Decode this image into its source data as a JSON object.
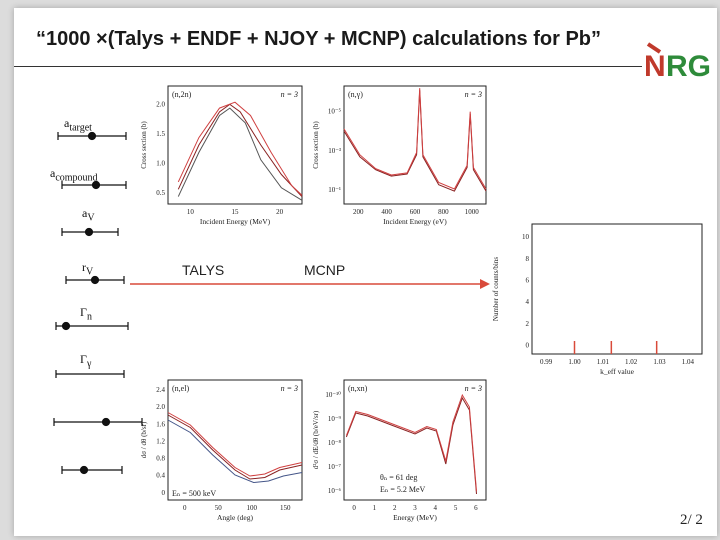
{
  "title": "“1000 ×(Talys + ENDF + NJOY + MCNP) calculations for Pb”",
  "logo": {
    "text": "NRG",
    "colors": {
      "n": "#c0392b",
      "rg": "#2e8b3a"
    }
  },
  "page_number": "2/ 2",
  "flow": {
    "left_label": "TALYS",
    "right_label": "MCNP",
    "arrow_color": "#d94a3a"
  },
  "parameters": [
    {
      "label": "a",
      "subscript": "target"
    },
    {
      "label": "a",
      "subscript": "compound"
    },
    {
      "label": "a",
      "subscript": "V"
    },
    {
      "label": "r",
      "subscript": "V"
    },
    {
      "label": "Γ",
      "subscript": "n"
    },
    {
      "label": "Γ",
      "subscript": "γ"
    },
    {
      "label": "",
      "subscript": ""
    },
    {
      "label": "",
      "subscript": ""
    }
  ],
  "chart_data": [
    {
      "type": "line",
      "tag": "(n,2n)",
      "ntag": "n = 3",
      "xlabel": "Incident Energy (MeV)",
      "ylabel": "Cross section (b)",
      "xlim": [
        7,
        20
      ],
      "ylim": [
        0.5,
        2.1
      ],
      "xticks": [
        "10",
        "15",
        "20"
      ],
      "yticks": [
        "0.5",
        "1.0",
        "1.5",
        "2.0"
      ],
      "series": [
        {
          "color": "#8a2222",
          "points": [
            [
              8,
              0.7
            ],
            [
              10,
              1.3
            ],
            [
              12,
              1.75
            ],
            [
              13,
              1.85
            ],
            [
              14,
              1.75
            ],
            [
              16,
              1.3
            ],
            [
              18,
              0.9
            ],
            [
              20,
              0.6
            ]
          ]
        },
        {
          "color": "#d04040",
          "points": [
            [
              8,
              0.8
            ],
            [
              10,
              1.4
            ],
            [
              12,
              1.8
            ],
            [
              13.5,
              1.88
            ],
            [
              15,
              1.7
            ],
            [
              17,
              1.2
            ],
            [
              19,
              0.75
            ],
            [
              20,
              0.62
            ]
          ]
        },
        {
          "color": "#555555",
          "points": [
            [
              8,
              0.6
            ],
            [
              10,
              1.2
            ],
            [
              12,
              1.7
            ],
            [
              13,
              1.8
            ],
            [
              14.5,
              1.6
            ],
            [
              16,
              1.1
            ],
            [
              18,
              0.72
            ],
            [
              20,
              0.55
            ]
          ]
        }
      ]
    },
    {
      "type": "line",
      "tag": "(n,γ)",
      "ntag": "n = 3",
      "xlabel": "Incident Energy (eV)",
      "ylabel": "Cross section (b)",
      "xlim": [
        100,
        1000
      ],
      "ylim_log": [
        -6.5,
        -1
      ],
      "xticks": [
        "200",
        "400",
        "600",
        "800",
        "1000"
      ],
      "yticks": [
        "10⁻¹",
        "10⁻³",
        "10⁻⁵"
      ],
      "series": [
        {
          "color": "#8a2222",
          "points": [
            [
              100,
              -3.1
            ],
            [
              200,
              -4.3
            ],
            [
              300,
              -4.9
            ],
            [
              400,
              -5.2
            ],
            [
              500,
              -5.1
            ],
            [
              560,
              -4.2
            ],
            [
              580,
              -1.2
            ],
            [
              600,
              -4.3
            ],
            [
              700,
              -5.6
            ],
            [
              800,
              -5.9
            ],
            [
              880,
              -4.8
            ],
            [
              900,
              -2.3
            ],
            [
              920,
              -4.9
            ],
            [
              1000,
              -5.9
            ]
          ]
        },
        {
          "color": "#d04040",
          "points": [
            [
              100,
              -3.0
            ],
            [
              200,
              -4.2
            ],
            [
              300,
              -4.85
            ],
            [
              400,
              -5.15
            ],
            [
              500,
              -5.05
            ],
            [
              560,
              -4.1
            ],
            [
              580,
              -1.1
            ],
            [
              600,
              -4.2
            ],
            [
              700,
              -5.5
            ],
            [
              800,
              -5.8
            ],
            [
              880,
              -4.7
            ],
            [
              900,
              -2.2
            ],
            [
              920,
              -4.8
            ],
            [
              1000,
              -5.8
            ]
          ]
        }
      ]
    },
    {
      "type": "bar",
      "xlabel": "k_eff value",
      "ylabel": "Number of counts/bins",
      "xlim": [
        0.985,
        1.045
      ],
      "ylim": [
        0,
        10
      ],
      "xticks": [
        "0.99",
        "1.00",
        "1.01",
        "1.02",
        "1.03",
        "1.04"
      ],
      "yticks": [
        "0",
        "2",
        "4",
        "6",
        "8",
        "10"
      ],
      "values": [
        [
          1.0,
          1
        ],
        [
          1.013,
          1
        ],
        [
          1.029,
          1
        ]
      ],
      "bar_color": "#d94a3a"
    },
    {
      "type": "line",
      "tag": "(n,el)",
      "ntag": "n = 3",
      "xlabel": "Angle (deg)",
      "ylabel": "dσ / dθ (b/sr)",
      "annotation": "Eₙ = 500 keV",
      "xlim": [
        0,
        180
      ],
      "ylim": [
        0,
        2.4
      ],
      "xticks": [
        "0",
        "50",
        "100",
        "150"
      ],
      "yticks": [
        "0",
        "0.4",
        "0.8",
        "1.2",
        "1.6",
        "2.0",
        "2.4"
      ],
      "series": [
        {
          "color": "#8a2222",
          "points": [
            [
              0,
              1.7
            ],
            [
              30,
              1.45
            ],
            [
              60,
              1.0
            ],
            [
              90,
              0.6
            ],
            [
              110,
              0.42
            ],
            [
              130,
              0.45
            ],
            [
              150,
              0.6
            ],
            [
              180,
              0.7
            ]
          ]
        },
        {
          "color": "#d04040",
          "points": [
            [
              0,
              1.75
            ],
            [
              30,
              1.5
            ],
            [
              60,
              1.05
            ],
            [
              90,
              0.65
            ],
            [
              110,
              0.48
            ],
            [
              130,
              0.52
            ],
            [
              150,
              0.65
            ],
            [
              180,
              0.75
            ]
          ]
        },
        {
          "color": "#445588",
          "points": [
            [
              0,
              1.6
            ],
            [
              30,
              1.35
            ],
            [
              60,
              0.9
            ],
            [
              90,
              0.5
            ],
            [
              115,
              0.35
            ],
            [
              135,
              0.38
            ],
            [
              155,
              0.48
            ],
            [
              180,
              0.55
            ]
          ]
        }
      ]
    },
    {
      "type": "line",
      "tag": "(n,xn)",
      "ntag": "n = 3",
      "xlabel": "Energy (MeV)",
      "ylabel": "d²σ / dE/dθ (b/eV/sr)",
      "annotation1": "θₙ = 61 deg",
      "annotation2": "Eₙ = 5.2 MeV",
      "xlim": [
        0,
        6
      ],
      "ylim_log": [
        -10,
        -6
      ],
      "xticks": [
        "0",
        "1",
        "2",
        "3",
        "4",
        "5",
        "6"
      ],
      "yticks": [
        "10⁻⁶",
        "10⁻⁷",
        "10⁻⁸",
        "10⁻⁹",
        "10⁻¹⁰"
      ],
      "series": [
        {
          "color": "#8a2222",
          "points": [
            [
              0.1,
              -7.9
            ],
            [
              0.5,
              -7.1
            ],
            [
              1,
              -7.2
            ],
            [
              2,
              -7.5
            ],
            [
              3,
              -7.8
            ],
            [
              3.5,
              -7.6
            ],
            [
              3.9,
              -7.7
            ],
            [
              4.3,
              -8.8
            ],
            [
              4.6,
              -7.5
            ],
            [
              5,
              -6.6
            ],
            [
              5.3,
              -7.0
            ],
            [
              5.6,
              -9.8
            ]
          ]
        },
        {
          "color": "#d04040",
          "points": [
            [
              0.1,
              -7.85
            ],
            [
              0.5,
              -7.05
            ],
            [
              1,
              -7.15
            ],
            [
              2,
              -7.45
            ],
            [
              3,
              -7.75
            ],
            [
              3.5,
              -7.55
            ],
            [
              3.9,
              -7.65
            ],
            [
              4.3,
              -8.7
            ],
            [
              4.6,
              -7.4
            ],
            [
              5,
              -6.5
            ],
            [
              5.3,
              -6.9
            ],
            [
              5.6,
              -9.7
            ]
          ]
        }
      ]
    }
  ]
}
